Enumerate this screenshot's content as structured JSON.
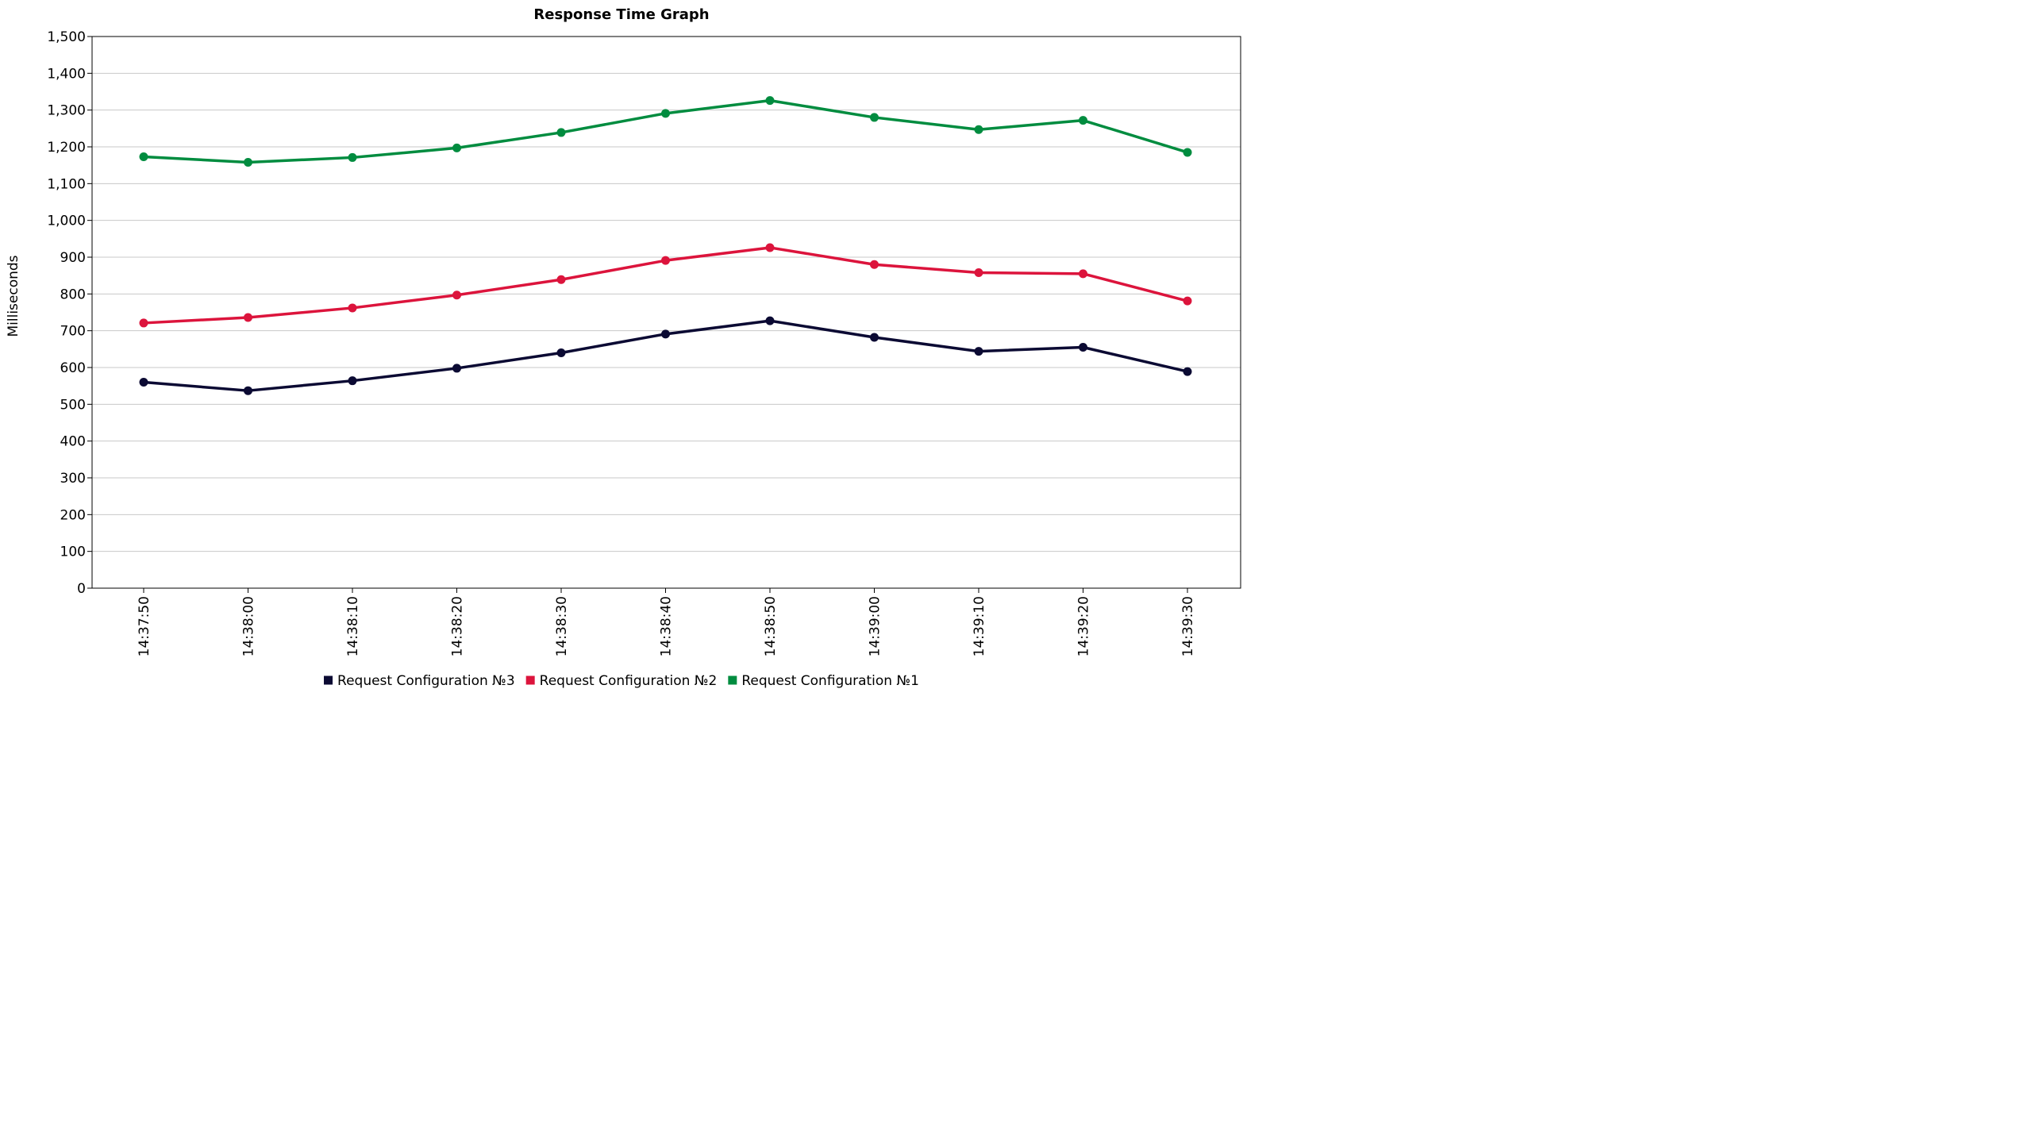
{
  "chart_data": {
    "type": "line",
    "title": "Response Time Graph",
    "xlabel": "",
    "ylabel": "Milliseconds",
    "ylim": [
      0,
      1500
    ],
    "y_ticks": [
      {
        "value": 0,
        "label": "0"
      },
      {
        "value": 100,
        "label": "100"
      },
      {
        "value": 200,
        "label": "200"
      },
      {
        "value": 300,
        "label": "300"
      },
      {
        "value": 400,
        "label": "400"
      },
      {
        "value": 500,
        "label": "500"
      },
      {
        "value": 600,
        "label": "600"
      },
      {
        "value": 700,
        "label": "700"
      },
      {
        "value": 800,
        "label": "800"
      },
      {
        "value": 900,
        "label": "900"
      },
      {
        "value": 1000,
        "label": "1,000"
      },
      {
        "value": 1100,
        "label": "1,100"
      },
      {
        "value": 1200,
        "label": "1,200"
      },
      {
        "value": 1300,
        "label": "1,300"
      },
      {
        "value": 1400,
        "label": "1,400"
      },
      {
        "value": 1500,
        "label": "1,500"
      }
    ],
    "categories": [
      "14:37:50",
      "14:38:00",
      "14:38:10",
      "14:38:20",
      "14:38:30",
      "14:38:40",
      "14:38:50",
      "14:39:00",
      "14:39:10",
      "14:39:20",
      "14:39:30"
    ],
    "grid": true,
    "legend_position": "bottom",
    "series": [
      {
        "name": "Request Configuration №3",
        "color": "#0b0a33",
        "values": [
          560,
          537,
          564,
          598,
          640,
          691,
          727,
          682,
          644,
          655,
          589
        ]
      },
      {
        "name": "Request Configuration №2",
        "color": "#dc143c",
        "values": [
          721,
          736,
          762,
          797,
          839,
          891,
          926,
          880,
          858,
          855,
          781
        ]
      },
      {
        "name": "Request Configuration №1",
        "color": "#008c3f",
        "values": [
          1173,
          1158,
          1171,
          1197,
          1239,
          1291,
          1326,
          1280,
          1247,
          1272,
          1185
        ]
      }
    ]
  }
}
